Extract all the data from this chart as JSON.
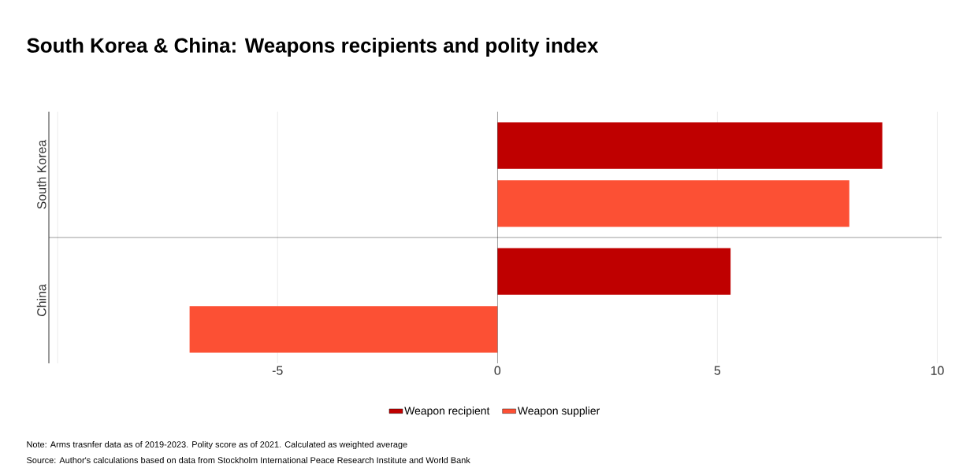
{
  "chart_data": {
    "type": "bar",
    "orientation": "horizontal",
    "title": "South Korea & China: Weapons recipients and polity index",
    "categories": [
      "South Korea",
      "China"
    ],
    "series": [
      {
        "name": "Weapon recipient",
        "color": "#bf0000",
        "values": [
          8.75,
          5.3
        ]
      },
      {
        "name": "Weapon supplier",
        "color": "#fc5034",
        "values": [
          8.0,
          -7.0
        ]
      }
    ],
    "xlim": [
      -10.2,
      10.1
    ],
    "xticks": [
      {
        "value": -10,
        "label": null
      },
      -5,
      0,
      5,
      10
    ],
    "grid": "x",
    "legend": "bottom",
    "annotations": [
      "Note: Arms trasnfer data as of 2019-2023. Polity score as of 2021. Calculated as weighted average",
      "Source: Author's calculations based on data from Stockholm International Peace Research Institute and World Bank"
    ]
  }
}
